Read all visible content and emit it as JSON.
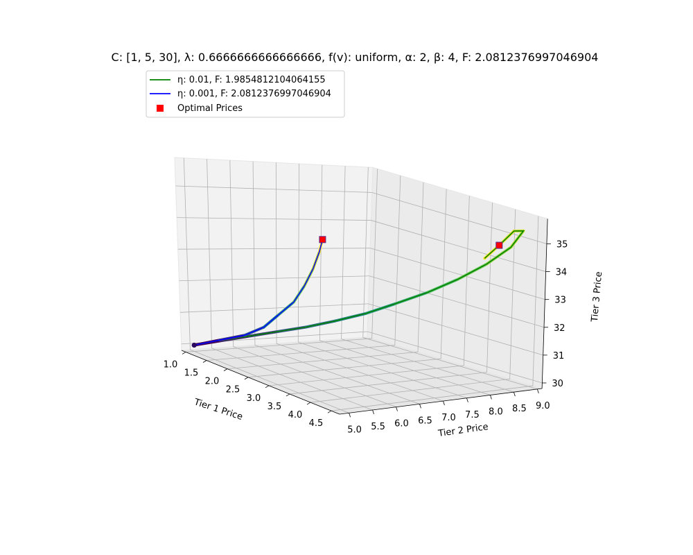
{
  "chart_data": {
    "type": "line",
    "projection": "3d",
    "title": "C: [1, 5, 30], λ: 0.6666666666666666, f(v): uniform, α: 2, β: 4, F: 2.0812376997046904",
    "xlabel": "Tier 1 Price",
    "ylabel": "Tier 2 Price",
    "zlabel": "Tier 3 Price",
    "xlim": [
      0.9,
      4.7
    ],
    "ylim": [
      4.8,
      9.1
    ],
    "zlim": [
      29.8,
      35.9
    ],
    "xticks": [
      "1.0",
      "1.5",
      "2.0",
      "2.5",
      "3.0",
      "3.5",
      "4.0",
      "4.5"
    ],
    "yticks": [
      "5.0",
      "5.5",
      "6.0",
      "6.5",
      "7.0",
      "7.5",
      "8.0",
      "8.5",
      "9.0"
    ],
    "zticks": [
      "30",
      "31",
      "32",
      "33",
      "34",
      "35"
    ],
    "grid": true,
    "legend_position": "top-left",
    "legend": [
      {
        "label": "η: 0.01, F: 1.9854812104064155",
        "color": "#008000",
        "marker": "line"
      },
      {
        "label": "η: 0.001, F: 2.0812376997046904",
        "color": "#0000ff",
        "marker": "line"
      },
      {
        "label": "Optimal Prices",
        "color": "#ff0000",
        "marker": "square"
      }
    ],
    "series": [
      {
        "name": "η: 0.01, F: 1.9854812104064155",
        "color": "#008000",
        "points": [
          [
            1.0,
            5.0,
            30.0
          ],
          [
            1.35,
            5.3,
            30.3
          ],
          [
            1.7,
            5.6,
            30.6
          ],
          [
            2.05,
            5.9,
            30.9
          ],
          [
            2.4,
            6.2,
            31.2
          ],
          [
            2.75,
            6.5,
            31.55
          ],
          [
            3.1,
            6.85,
            31.95
          ],
          [
            3.4,
            7.2,
            32.4
          ],
          [
            3.7,
            7.6,
            32.9
          ],
          [
            3.95,
            8.0,
            33.45
          ],
          [
            4.15,
            8.4,
            34.05
          ],
          [
            4.3,
            8.75,
            34.7
          ],
          [
            4.35,
            8.95,
            35.3
          ],
          [
            4.25,
            8.85,
            35.25
          ],
          [
            4.15,
            8.65,
            34.7
          ],
          [
            4.05,
            8.45,
            34.2
          ]
        ]
      },
      {
        "name": "η: 0.001, F: 2.0812376997046904",
        "color": "#0000ff",
        "points": [
          [
            1.0,
            5.0,
            30.0
          ],
          [
            1.4,
            5.2,
            30.35
          ],
          [
            1.8,
            5.4,
            30.7
          ],
          [
            2.1,
            5.55,
            31.1
          ],
          [
            2.3,
            5.7,
            31.6
          ],
          [
            2.5,
            5.85,
            32.1
          ],
          [
            2.65,
            5.95,
            32.7
          ],
          [
            2.75,
            6.05,
            33.3
          ],
          [
            2.8,
            6.15,
            33.9
          ],
          [
            2.82,
            6.2,
            34.3
          ]
        ]
      }
    ],
    "optimal_prices": [
      [
        2.82,
        6.2,
        34.3
      ],
      [
        4.15,
        8.65,
        34.7
      ]
    ]
  }
}
